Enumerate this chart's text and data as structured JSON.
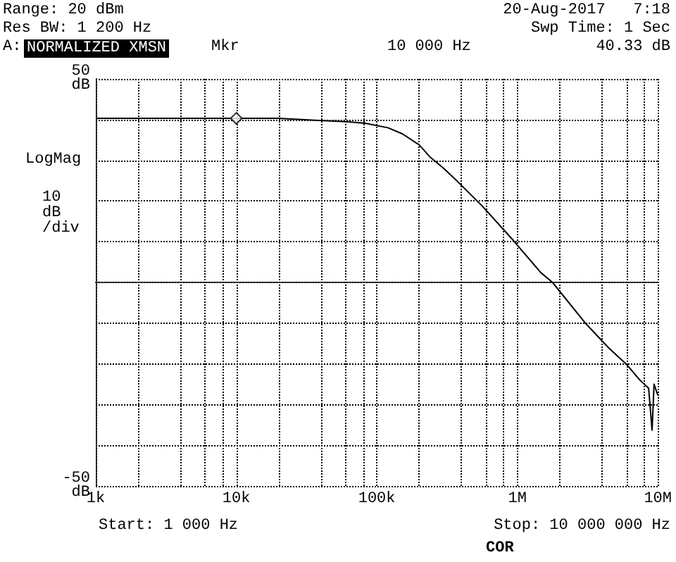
{
  "chart_data": {
    "type": "line",
    "ylabel": "LogMag",
    "x": [
      1000,
      2000,
      5000,
      10000,
      20000,
      38400,
      60000,
      82600,
      120000,
      152000,
      200000,
      241000,
      300000,
      383000,
      562000,
      960000,
      1050000,
      1470000,
      1780000,
      3030000,
      4470000,
      6050000,
      7400000,
      8600000,
      9100000,
      9400000,
      10000000
    ],
    "series": [
      {
        "color": "#000000",
        "values": [
          40.3,
          40.3,
          40.3,
          40.3,
          40.3,
          39.8,
          39.5,
          39.1,
          38.0,
          36.5,
          33.8,
          30.7,
          28.0,
          24.5,
          18.8,
          9.9,
          8.3,
          2.4,
          0,
          -9.9,
          -16.1,
          -20.3,
          -23.9,
          -26,
          -36.3,
          -25,
          -27.7
        ]
      },
      {
        "type": "scatter",
        "color": "#000000",
        "marker": "diamond",
        "x": [
          10000
        ],
        "values": [
          40.3
        ]
      }
    ],
    "log": "x",
    "xlim": [
      1000,
      10000000
    ],
    "xticks": [
      {
        "value": 1000,
        "label": "1k"
      },
      {
        "value": 2000,
        "label": null
      },
      {
        "value": 4000,
        "label": null
      },
      {
        "value": 6000,
        "label": null
      },
      {
        "value": 8000,
        "label": null
      },
      {
        "value": 10000,
        "label": "10k"
      },
      {
        "value": 20000,
        "label": null
      },
      {
        "value": 40000,
        "label": null
      },
      {
        "value": 60000,
        "label": null
      },
      {
        "value": 80000,
        "label": null
      },
      {
        "value": 100000,
        "label": "100k"
      },
      {
        "value": 200000,
        "label": null
      },
      {
        "value": 400000,
        "label": null
      },
      {
        "value": 600000,
        "label": null
      },
      {
        "value": 800000,
        "label": null
      },
      {
        "value": 1000000,
        "label": "1M"
      },
      {
        "value": 2000000,
        "label": null
      },
      {
        "value": 4000000,
        "label": null
      },
      {
        "value": 6000000,
        "label": null
      },
      {
        "value": 8000000,
        "label": null
      },
      {
        "value": 10000000,
        "label": "10M"
      }
    ],
    "ylim": [
      -50,
      50
    ],
    "yticks": [
      {
        "value": -50,
        "label": "-50 dB"
      },
      {
        "value": -40,
        "label": null
      },
      {
        "value": -30,
        "label": null
      },
      {
        "value": -20,
        "label": null
      },
      {
        "value": -10,
        "label": null
      },
      {
        "value": 0,
        "label": null
      },
      {
        "value": 10,
        "label": null
      },
      {
        "value": 20,
        "label": null
      },
      {
        "value": 30,
        "label": null
      },
      {
        "value": 40,
        "label": null
      },
      {
        "value": 50,
        "label": "50 dB"
      }
    ],
    "grid": true,
    "marker": "none",
    "line_style": "solid",
    "annotations": [
      "Range: 20 dBm",
      "20-Aug-2017   7:18",
      "Res BW: 1 200 Hz",
      "Swp Time: 1 Sec",
      "A:",
      "NORMALIZED XMSN",
      "Mkr",
      "10 000 Hz",
      "40.33 dB",
      "10 dB /div",
      "Start: 1 000 Hz",
      "Stop: 10 000 000 Hz",
      "COR"
    ]
  }
}
